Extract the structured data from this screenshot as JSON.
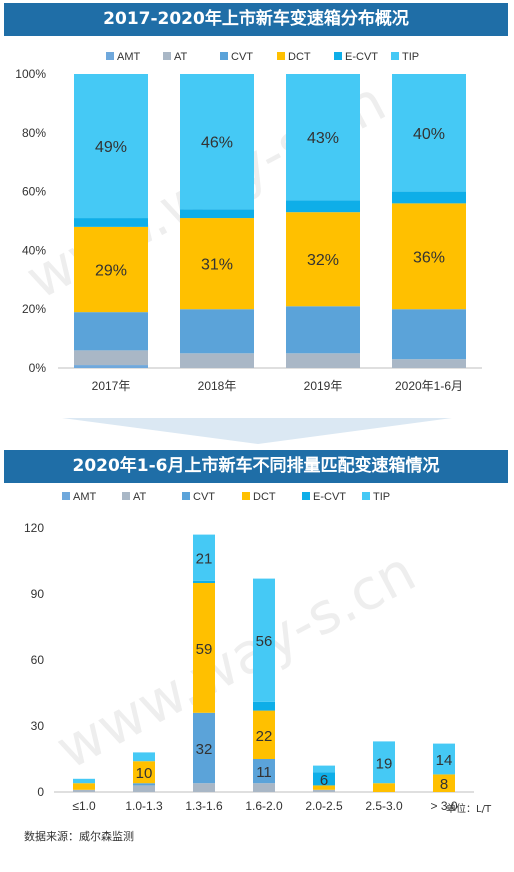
{
  "colors": {
    "AMT": "#6fa8dc",
    "AT": "#a9b7c6",
    "CVT": "#5ba3d9",
    "DCT": "#ffc000",
    "E-CVT": "#0eaee8",
    "TIP": "#45c9f5",
    "title_bar": "#1f6ea7"
  },
  "footnote": "数据来源：威尔森监测",
  "chart_data": [
    {
      "type": "bar",
      "stacked": true,
      "title": "2017-2020年上市新车变速箱分布概况",
      "categories": [
        "2017年",
        "2018年",
        "2019年",
        "2020年1-6月"
      ],
      "ylim": [
        0,
        100
      ],
      "yticks": [
        "0%",
        "20%",
        "40%",
        "60%",
        "80%",
        "100%"
      ],
      "legend": [
        "AMT",
        "AT",
        "CVT",
        "DCT",
        "E-CVT",
        "TIP"
      ],
      "legend_position": "top",
      "series": [
        {
          "name": "AMT",
          "values": [
            1,
            0,
            0,
            0
          ]
        },
        {
          "name": "AT",
          "values": [
            5,
            5,
            5,
            3
          ]
        },
        {
          "name": "CVT",
          "values": [
            13,
            15,
            16,
            17
          ]
        },
        {
          "name": "DCT",
          "values": [
            29,
            31,
            32,
            36
          ]
        },
        {
          "name": "E-CVT",
          "values": [
            3,
            3,
            4,
            4
          ]
        },
        {
          "name": "TIP",
          "values": [
            49,
            46,
            43,
            40
          ]
        }
      ],
      "data_labels": [
        {
          "category": 0,
          "series": "DCT",
          "text": "29%"
        },
        {
          "category": 0,
          "series": "TIP",
          "text": "49%"
        },
        {
          "category": 1,
          "series": "DCT",
          "text": "31%"
        },
        {
          "category": 1,
          "series": "TIP",
          "text": "46%"
        },
        {
          "category": 2,
          "series": "DCT",
          "text": "32%"
        },
        {
          "category": 2,
          "series": "TIP",
          "text": "43%"
        },
        {
          "category": 3,
          "series": "DCT",
          "text": "36%"
        },
        {
          "category": 3,
          "series": "TIP",
          "text": "40%"
        }
      ]
    },
    {
      "type": "bar",
      "stacked": true,
      "title": "2020年1-6月上市新车不同排量匹配变速箱情况",
      "categories": [
        "≤1.0",
        "1.0-1.3",
        "1.3-1.6",
        "1.6-2.0",
        "2.0-2.5",
        "2.5-3.0",
        "> 3.0"
      ],
      "ylim": [
        0,
        120
      ],
      "yticks": [
        "0",
        "30",
        "60",
        "90",
        "120"
      ],
      "unit_label": "单位：L/T",
      "legend": [
        "AMT",
        "AT",
        "CVT",
        "DCT",
        "E-CVT",
        "TIP"
      ],
      "legend_position": "top",
      "series": [
        {
          "name": "AMT",
          "values": [
            0,
            0,
            0,
            0,
            0,
            0,
            0
          ]
        },
        {
          "name": "AT",
          "values": [
            1,
            3,
            4,
            4,
            1,
            0,
            0
          ]
        },
        {
          "name": "CVT",
          "values": [
            0,
            1,
            32,
            11,
            0,
            0,
            0
          ]
        },
        {
          "name": "DCT",
          "values": [
            3,
            10,
            59,
            22,
            2,
            4,
            8
          ]
        },
        {
          "name": "E-CVT",
          "values": [
            0,
            0,
            1,
            4,
            6,
            0,
            0
          ]
        },
        {
          "name": "TIP",
          "values": [
            2,
            4,
            21,
            56,
            3,
            19,
            14
          ]
        }
      ],
      "data_labels": [
        {
          "category": 1,
          "series": "DCT",
          "text": "10"
        },
        {
          "category": 2,
          "series": "CVT",
          "text": "32"
        },
        {
          "category": 2,
          "series": "DCT",
          "text": "59"
        },
        {
          "category": 2,
          "series": "TIP",
          "text": "21"
        },
        {
          "category": 3,
          "series": "CVT",
          "text": "11"
        },
        {
          "category": 3,
          "series": "DCT",
          "text": "22"
        },
        {
          "category": 3,
          "series": "TIP",
          "text": "56"
        },
        {
          "category": 4,
          "series": "E-CVT",
          "text": "6"
        },
        {
          "category": 5,
          "series": "TIP",
          "text": "19"
        },
        {
          "category": 6,
          "series": "DCT",
          "text": "8"
        },
        {
          "category": 6,
          "series": "TIP",
          "text": "14"
        }
      ]
    }
  ]
}
